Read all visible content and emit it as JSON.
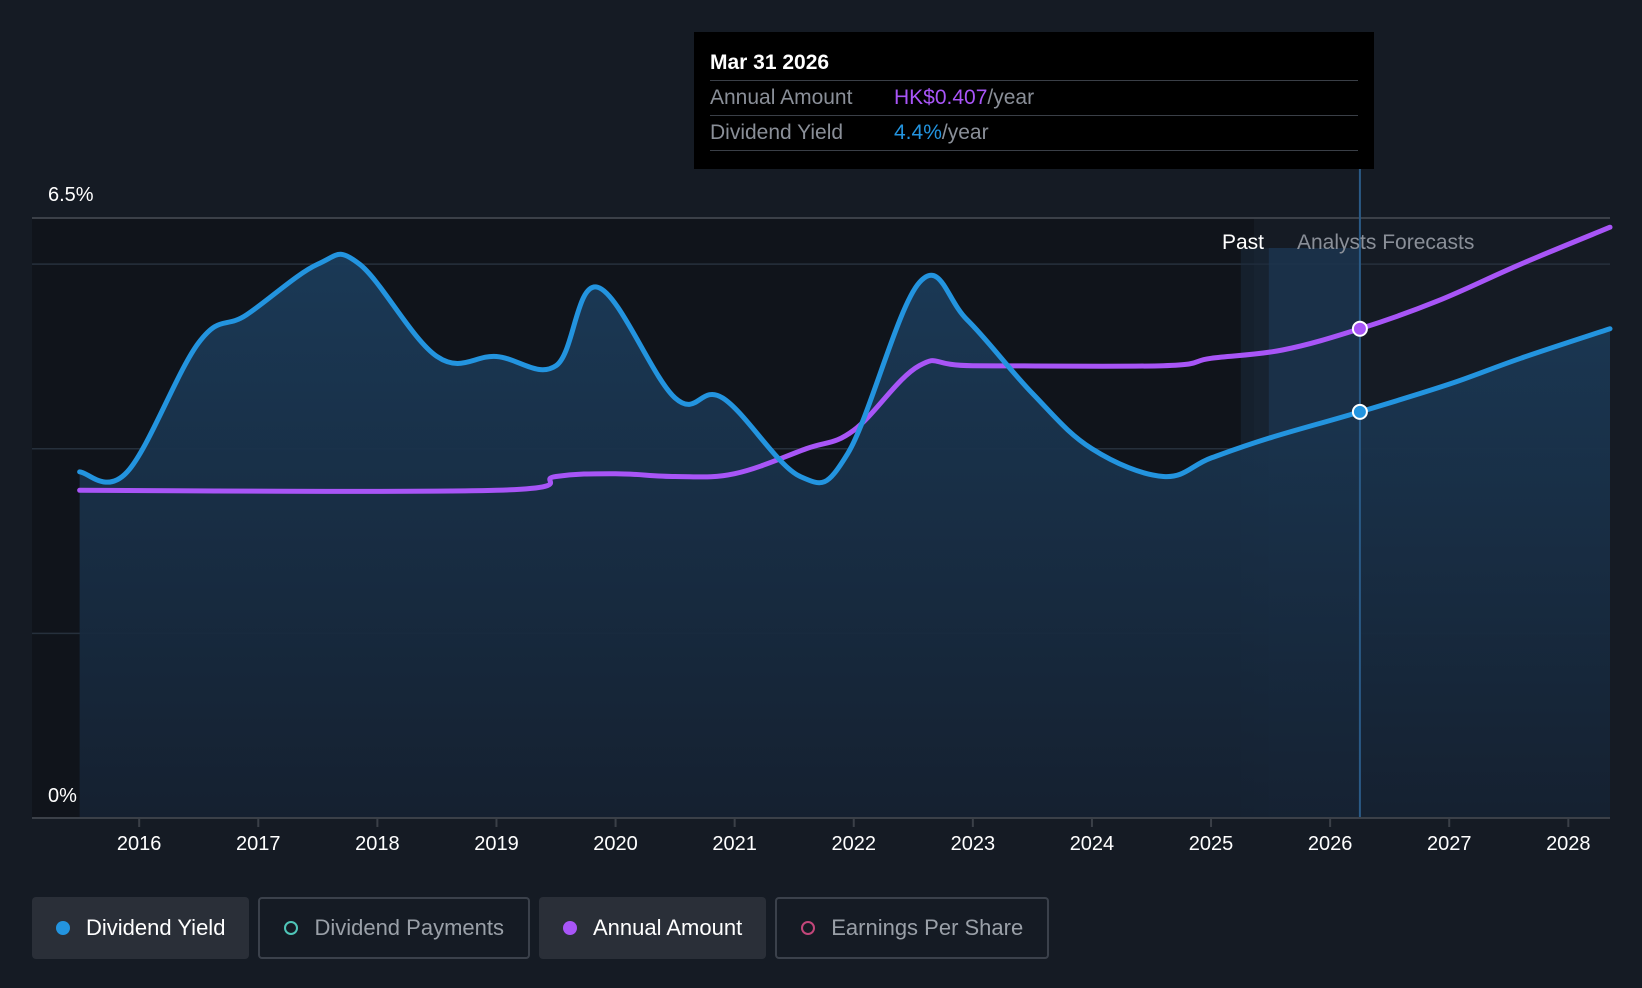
{
  "tooltip": {
    "date": "Mar 31 2026",
    "annual_amount_label": "Annual Amount",
    "annual_amount_value": "HK$0.407",
    "dividend_yield_label": "Dividend Yield",
    "dividend_yield_value": "4.4%",
    "per_year": "/year"
  },
  "legend": [
    {
      "label": "Dividend Yield",
      "active": true,
      "marker": "filled",
      "color": "#2394df"
    },
    {
      "label": "Dividend Payments",
      "active": false,
      "marker": "hollow",
      "color": "#4fc5b8"
    },
    {
      "label": "Annual Amount",
      "active": true,
      "marker": "filled",
      "color": "#a855f7"
    },
    {
      "label": "Earnings Per Share",
      "active": false,
      "marker": "hollow",
      "color": "#c2467a"
    }
  ],
  "chart_data": {
    "type": "line",
    "x_range": [
      2015.1,
      2028.35
    ],
    "y_range": [
      0,
      6.5
    ],
    "y_tick_labels": [
      {
        "value": 6.5,
        "label": "6.5%"
      },
      {
        "value": 0,
        "label": "0%"
      }
    ],
    "gridlines": [
      6.5,
      6.0,
      4.0,
      2.0
    ],
    "x_ticks": [
      2016,
      2017,
      2018,
      2019,
      2020,
      2021,
      2022,
      2023,
      2024,
      2025,
      2026,
      2027,
      2028
    ],
    "past_label": "Past",
    "forecast_label": "Analysts Forecasts",
    "forecast_start": 2025.25,
    "highlight_x": 2026.25,
    "colors": {
      "yield": "#2394df",
      "amount": "#a855f7"
    },
    "series": [
      {
        "name": "Dividend Yield",
        "unit": "%",
        "points": [
          [
            2015.5,
            3.75
          ],
          [
            2015.9,
            3.75
          ],
          [
            2016.5,
            5.15
          ],
          [
            2016.9,
            5.45
          ],
          [
            2017.5,
            6.0
          ],
          [
            2017.85,
            6.0
          ],
          [
            2018.5,
            5.0
          ],
          [
            2019.0,
            5.0
          ],
          [
            2019.5,
            4.9
          ],
          [
            2019.85,
            5.75
          ],
          [
            2020.5,
            4.55
          ],
          [
            2020.9,
            4.55
          ],
          [
            2021.55,
            3.7
          ],
          [
            2021.95,
            3.95
          ],
          [
            2022.55,
            5.8
          ],
          [
            2022.95,
            5.4
          ],
          [
            2023.5,
            4.6
          ],
          [
            2024.0,
            4.0
          ],
          [
            2024.6,
            3.7
          ],
          [
            2025.0,
            3.9
          ],
          [
            2025.5,
            4.12
          ],
          [
            2026.25,
            4.4
          ],
          [
            2027.0,
            4.7
          ],
          [
            2027.6,
            4.98
          ],
          [
            2028.35,
            5.3
          ]
        ]
      },
      {
        "name": "Annual Amount",
        "unit": "HK$",
        "points": [
          [
            2015.5,
            3.55
          ],
          [
            2019.0,
            3.55
          ],
          [
            2019.5,
            3.7
          ],
          [
            2020.0,
            3.73
          ],
          [
            2020.5,
            3.7
          ],
          [
            2021.0,
            3.73
          ],
          [
            2021.6,
            4.0
          ],
          [
            2022.0,
            4.2
          ],
          [
            2022.55,
            4.9
          ],
          [
            2023.0,
            4.9
          ],
          [
            2024.6,
            4.9
          ],
          [
            2025.0,
            4.98
          ],
          [
            2025.6,
            5.07
          ],
          [
            2026.25,
            5.3
          ],
          [
            2026.9,
            5.6
          ],
          [
            2027.6,
            6.0
          ],
          [
            2028.35,
            6.4
          ]
        ]
      }
    ]
  }
}
